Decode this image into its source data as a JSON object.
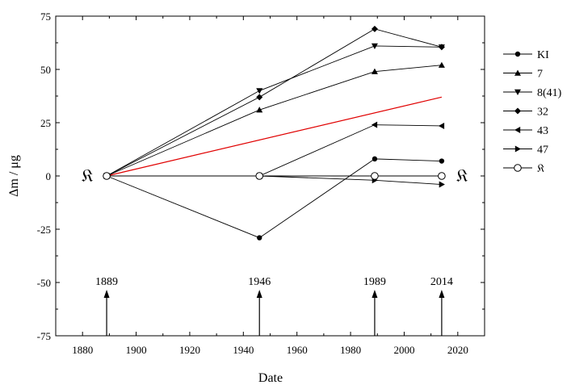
{
  "chart_data": {
    "type": "line",
    "xlabel": "Date",
    "ylabel": "Δm / μg",
    "xlim": [
      1870,
      2030
    ],
    "ylim": [
      -75,
      75
    ],
    "xticks": [
      1880,
      1900,
      1920,
      1940,
      1960,
      1980,
      2000,
      2020
    ],
    "xtick_labels": [
      "1880",
      "1900",
      "1920",
      "1940",
      "1960",
      "1980",
      "2000",
      "2020"
    ],
    "yticks": [
      75,
      50,
      25,
      0,
      -25,
      -50,
      -75
    ],
    "ytick_labels": [
      "75",
      "50",
      "25",
      "0",
      "-25",
      "-50",
      "-75"
    ],
    "grid": false,
    "legend_position": "right",
    "series": [
      {
        "name": "KI",
        "marker": "circle-filled",
        "x": [
          1889,
          1946,
          1989,
          2014
        ],
        "y": [
          0,
          -29,
          8,
          7
        ]
      },
      {
        "name": "7",
        "marker": "triangle-up",
        "x": [
          1889,
          1946,
          1989,
          2014
        ],
        "y": [
          0,
          31,
          49,
          52
        ]
      },
      {
        "name": "8(41)",
        "marker": "triangle-down",
        "x": [
          1889,
          1946,
          1989,
          2014
        ],
        "y": [
          0,
          40,
          61,
          60.5
        ]
      },
      {
        "name": "32",
        "marker": "diamond",
        "x": [
          1889,
          1946,
          1989,
          2014
        ],
        "y": [
          0,
          37,
          69,
          60.5
        ]
      },
      {
        "name": "43",
        "marker": "triangle-left",
        "x": [
          1889,
          1946,
          1989,
          2014
        ],
        "y": [
          0,
          0,
          24,
          23.5
        ]
      },
      {
        "name": "47",
        "marker": "triangle-right",
        "x": [
          1889,
          1946,
          1989,
          2014
        ],
        "y": [
          0,
          0,
          -2,
          -4
        ]
      },
      {
        "name": "Ꝃ",
        "marker": "circle-open",
        "x": [
          1889,
          1946,
          1989,
          2014
        ],
        "y": [
          0,
          0,
          0,
          0
        ]
      }
    ],
    "trend_line": {
      "color": "#e00000",
      "x": [
        1889,
        2014
      ],
      "y": [
        0,
        37
      ]
    },
    "annotations": [
      {
        "text": "1889",
        "x": 1889
      },
      {
        "text": "1946",
        "x": 1946
      },
      {
        "text": "1989",
        "x": 1989
      },
      {
        "text": "2014",
        "x": 2014
      }
    ],
    "k_symbol": "𝔎",
    "legend_k_symbol": "𝔎"
  }
}
